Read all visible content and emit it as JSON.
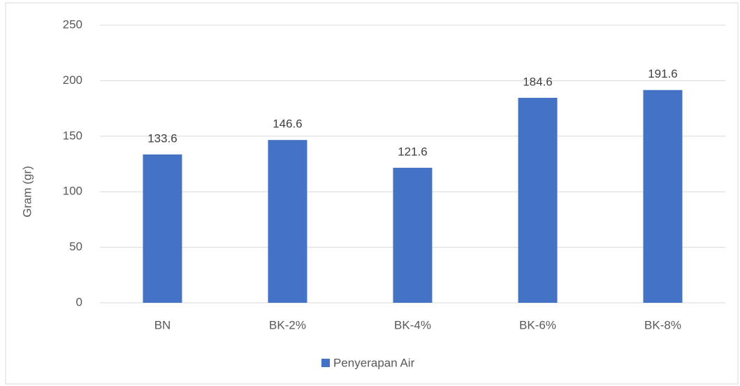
{
  "chart_data": {
    "type": "bar",
    "categories": [
      "BN",
      "BK-2%",
      "BK-4%",
      "BK-6%",
      "BK-8%"
    ],
    "series": [
      {
        "name": "Penyerapan Air",
        "color": "#4472c4",
        "values": [
          133.6,
          146.6,
          121.6,
          184.6,
          191.6
        ]
      }
    ],
    "ylabel": "Gram (gr)",
    "ylim": [
      0,
      250
    ],
    "yticks": [
      0,
      50,
      100,
      150,
      200,
      250
    ],
    "grid": true,
    "legend": "bottom"
  }
}
